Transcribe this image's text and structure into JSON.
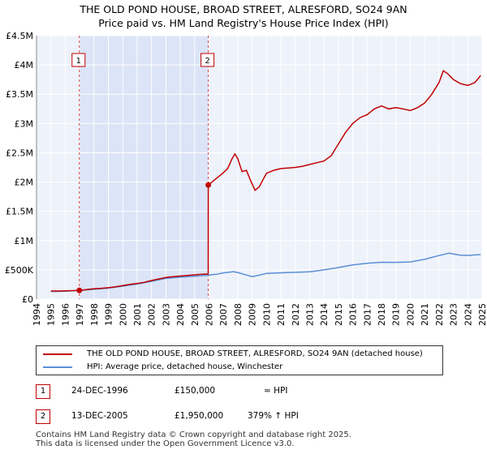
{
  "header": {
    "title_line1": "THE OLD POND HOUSE, BROAD STREET, ALRESFORD, SO24 9AN",
    "title_line2": "Price paid vs. HM Land Registry's House Price Index (HPI)"
  },
  "chart_data": {
    "type": "line",
    "title": "THE OLD POND HOUSE, BROAD STREET, ALRESFORD, SO24 9AN",
    "subtitle": "Price paid vs. HM Land Registry's House Price Index (HPI)",
    "xlabel": "",
    "ylabel": "",
    "xlim": [
      1994,
      2025
    ],
    "ylim": [
      0,
      4500000
    ],
    "y_ticks": [
      {
        "value": 0,
        "label": "£0"
      },
      {
        "value": 500000,
        "label": "£500K"
      },
      {
        "value": 1000000,
        "label": "£1M"
      },
      {
        "value": 1500000,
        "label": "£1.5M"
      },
      {
        "value": 2000000,
        "label": "£2M"
      },
      {
        "value": 2500000,
        "label": "£2.5M"
      },
      {
        "value": 3000000,
        "label": "£3M"
      },
      {
        "value": 3500000,
        "label": "£3.5M"
      },
      {
        "value": 4000000,
        "label": "£4M"
      },
      {
        "value": 4500000,
        "label": "£4.5M"
      }
    ],
    "x_ticks": [
      "1994",
      "1995",
      "1996",
      "1997",
      "1998",
      "1999",
      "2000",
      "2001",
      "2002",
      "2003",
      "2004",
      "2005",
      "2006",
      "2007",
      "2008",
      "2009",
      "2010",
      "2011",
      "2012",
      "2013",
      "2014",
      "2015",
      "2016",
      "2017",
      "2018",
      "2019",
      "2020",
      "2021",
      "2022",
      "2023",
      "2024",
      "2025"
    ],
    "grid": true,
    "shaded_region": {
      "from": 1996.98,
      "to": 2005.95,
      "color": "#dce4f7"
    },
    "series": [
      {
        "name": "THE OLD POND HOUSE, BROAD STREET, ALRESFORD, SO24 9AN (detached house)",
        "color": "#c00000",
        "points": [
          [
            1995.0,
            140000
          ],
          [
            1995.5,
            138000
          ],
          [
            1996.0,
            142000
          ],
          [
            1996.5,
            146000
          ],
          [
            1996.98,
            150000
          ],
          [
            1997.5,
            165000
          ],
          [
            1998.0,
            178000
          ],
          [
            1998.5,
            185000
          ],
          [
            1999.0,
            195000
          ],
          [
            1999.5,
            210000
          ],
          [
            2000.0,
            232000
          ],
          [
            2000.5,
            252000
          ],
          [
            2001.0,
            268000
          ],
          [
            2001.5,
            288000
          ],
          [
            2002.0,
            318000
          ],
          [
            2002.5,
            345000
          ],
          [
            2003.0,
            370000
          ],
          [
            2003.5,
            385000
          ],
          [
            2004.0,
            395000
          ],
          [
            2004.5,
            405000
          ],
          [
            2005.0,
            415000
          ],
          [
            2005.5,
            425000
          ],
          [
            2005.94,
            430000
          ],
          [
            2005.95,
            1950000
          ],
          [
            2006.2,
            2000000
          ],
          [
            2006.5,
            2060000
          ],
          [
            2006.8,
            2120000
          ],
          [
            2007.0,
            2160000
          ],
          [
            2007.3,
            2230000
          ],
          [
            2007.6,
            2400000
          ],
          [
            2007.8,
            2480000
          ],
          [
            2008.0,
            2400000
          ],
          [
            2008.3,
            2180000
          ],
          [
            2008.6,
            2200000
          ],
          [
            2008.9,
            2020000
          ],
          [
            2009.2,
            1860000
          ],
          [
            2009.5,
            1920000
          ],
          [
            2009.8,
            2060000
          ],
          [
            2010.0,
            2150000
          ],
          [
            2010.5,
            2200000
          ],
          [
            2011.0,
            2230000
          ],
          [
            2011.5,
            2240000
          ],
          [
            2012.0,
            2250000
          ],
          [
            2012.5,
            2270000
          ],
          [
            2013.0,
            2300000
          ],
          [
            2013.5,
            2330000
          ],
          [
            2014.0,
            2360000
          ],
          [
            2014.5,
            2450000
          ],
          [
            2015.0,
            2650000
          ],
          [
            2015.5,
            2850000
          ],
          [
            2016.0,
            3000000
          ],
          [
            2016.5,
            3100000
          ],
          [
            2017.0,
            3150000
          ],
          [
            2017.5,
            3250000
          ],
          [
            2018.0,
            3300000
          ],
          [
            2018.5,
            3250000
          ],
          [
            2019.0,
            3270000
          ],
          [
            2019.5,
            3250000
          ],
          [
            2020.0,
            3220000
          ],
          [
            2020.5,
            3270000
          ],
          [
            2021.0,
            3350000
          ],
          [
            2021.5,
            3500000
          ],
          [
            2022.0,
            3700000
          ],
          [
            2022.3,
            3900000
          ],
          [
            2022.6,
            3850000
          ],
          [
            2023.0,
            3750000
          ],
          [
            2023.5,
            3680000
          ],
          [
            2024.0,
            3650000
          ],
          [
            2024.5,
            3700000
          ],
          [
            2024.9,
            3820000
          ]
        ]
      },
      {
        "name": "HPI: Average price, detached house, Winchester",
        "color": "#5a8fd6",
        "points": [
          [
            1995.0,
            130000
          ],
          [
            1996.0,
            136000
          ],
          [
            1997.0,
            150000
          ],
          [
            1998.0,
            168000
          ],
          [
            1999.0,
            188000
          ],
          [
            2000.0,
            222000
          ],
          [
            2001.0,
            258000
          ],
          [
            2002.0,
            305000
          ],
          [
            2003.0,
            355000
          ],
          [
            2004.0,
            375000
          ],
          [
            2005.0,
            392000
          ],
          [
            2005.95,
            410000
          ],
          [
            2006.5,
            425000
          ],
          [
            2007.0,
            448000
          ],
          [
            2007.7,
            470000
          ],
          [
            2008.0,
            455000
          ],
          [
            2008.5,
            420000
          ],
          [
            2009.0,
            385000
          ],
          [
            2009.5,
            410000
          ],
          [
            2010.0,
            440000
          ],
          [
            2011.0,
            450000
          ],
          [
            2012.0,
            458000
          ],
          [
            2013.0,
            468000
          ],
          [
            2014.0,
            500000
          ],
          [
            2015.0,
            540000
          ],
          [
            2016.0,
            585000
          ],
          [
            2017.0,
            612000
          ],
          [
            2018.0,
            630000
          ],
          [
            2019.0,
            628000
          ],
          [
            2020.0,
            635000
          ],
          [
            2021.0,
            680000
          ],
          [
            2022.0,
            745000
          ],
          [
            2022.7,
            785000
          ],
          [
            2023.0,
            770000
          ],
          [
            2023.5,
            752000
          ],
          [
            2024.0,
            748000
          ],
          [
            2024.9,
            762000
          ]
        ]
      }
    ],
    "annotations": [
      {
        "label": "1",
        "x": 1996.98,
        "price": 150000
      },
      {
        "label": "2",
        "x": 2005.95,
        "price": 1950000
      }
    ]
  },
  "legend": {
    "property_label": "THE OLD POND HOUSE, BROAD STREET, ALRESFORD, SO24 9AN (detached house)",
    "hpi_label": "HPI: Average price, detached house, Winchester"
  },
  "transactions": [
    {
      "marker": "1",
      "date": "24-DEC-1996",
      "price": "£150,000",
      "hpi": "≈ HPI"
    },
    {
      "marker": "2",
      "date": "13-DEC-2005",
      "price": "£1,950,000",
      "hpi": "379% ↑ HPI"
    }
  ],
  "footer": {
    "line1": "Contains HM Land Registry data © Crown copyright and database right 2025.",
    "line2": "This data is licensed under the Open Government Licence v3.0."
  }
}
